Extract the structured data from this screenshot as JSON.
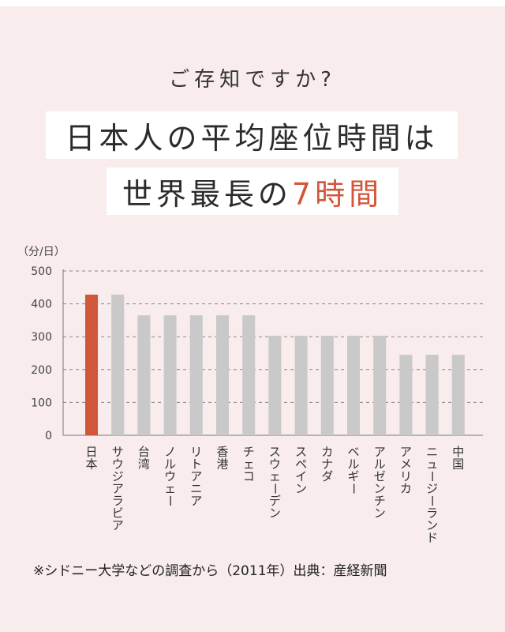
{
  "header": {
    "question": "ご存知ですか?",
    "headline_line1": "日本人の平均座位時間は",
    "headline_line2_prefix": "世界最長の",
    "headline_line2_highlight": "7時間"
  },
  "colors": {
    "background": "#f8ecec",
    "highlight_bar": "#d0573a",
    "bar": "#c9c9c9",
    "grid": "#888888",
    "accent_text": "#d0573a"
  },
  "chart_data": {
    "type": "bar",
    "unit_label": "（分/日）",
    "categories": [
      "日本",
      "サウジアラビア",
      "台湾",
      "ノルウェー",
      "リトアニア",
      "香港",
      "チェコ",
      "スウェーデン",
      "スペイン",
      "カナダ",
      "ベルギー",
      "アルゼンチン",
      "アメリカ",
      "ニュージーランド",
      "中国"
    ],
    "values": [
      428,
      428,
      365,
      365,
      365,
      365,
      365,
      303,
      303,
      303,
      303,
      303,
      245,
      245,
      245
    ],
    "highlight_index": 0,
    "ylim": [
      0,
      500
    ],
    "yticks": [
      0,
      100,
      200,
      300,
      400,
      500
    ],
    "grid": true,
    "legend": "none"
  },
  "footnote": "※シドニー大学などの調査から（2011年）出典：産経新聞"
}
